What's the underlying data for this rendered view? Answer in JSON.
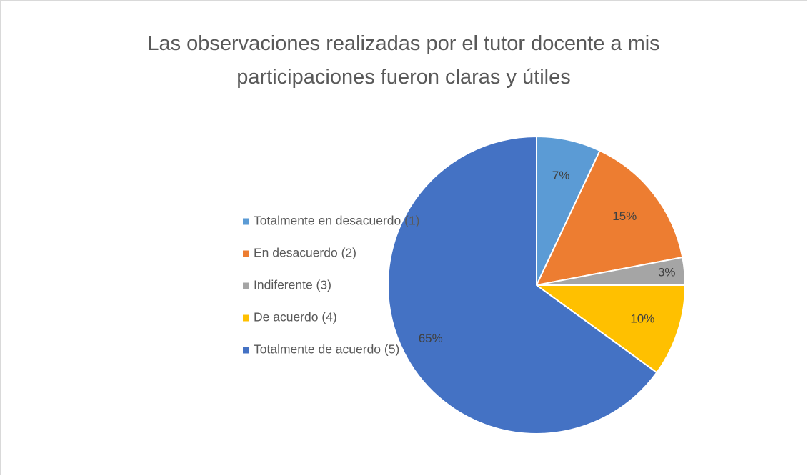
{
  "chart_data": {
    "type": "pie",
    "title": "Las observaciones realizadas por el tutor docente a mis participaciones fueron claras y útiles",
    "categories": [
      "Totalmente en desacuerdo (1)",
      "En desacuerdo (2)",
      "Indiferente (3)",
      "De acuerdo (4)",
      "Totalmente de acuerdo (5)"
    ],
    "values": [
      7,
      15,
      3,
      10,
      65
    ],
    "value_labels": [
      "7%",
      "15%",
      "3%",
      "10%",
      "65%"
    ],
    "colors": [
      "#5b9bd5",
      "#ed7d31",
      "#a5a5a5",
      "#ffc000",
      "#4472c4"
    ],
    "legend": "left"
  }
}
